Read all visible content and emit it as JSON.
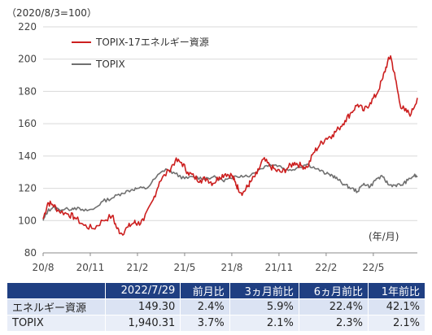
{
  "colors": {
    "energy": "#cc1f1f",
    "topix": "#707070",
    "header_bg": "#1f3f82",
    "row_bg": "#dbe3f3"
  },
  "chart_data": {
    "type": "line",
    "base_note": "（2020/8/3=100）",
    "x_unit": "(年/月)",
    "ylim": [
      80,
      220
    ],
    "yticks": [
      80,
      100,
      120,
      140,
      160,
      180,
      200,
      220
    ],
    "xticks": [
      "20/8",
      "20/11",
      "21/2",
      "21/5",
      "21/8",
      "21/11",
      "22/2",
      "22/5"
    ],
    "xrange_months": [
      0,
      11.9
    ],
    "legend_position": "top-left",
    "series": [
      {
        "name": "TOPIX-17エネルギー資源",
        "color": "#cc1f1f",
        "x": [
          0,
          0.15,
          0.3,
          0.5,
          0.8,
          1.0,
          1.3,
          1.6,
          1.9,
          2.2,
          2.35,
          2.5,
          2.7,
          2.9,
          3.0,
          3.2,
          3.5,
          3.7,
          4.0,
          4.2,
          4.4,
          4.6,
          4.8,
          5.0,
          5.2,
          5.4,
          5.6,
          5.8,
          6.0,
          6.1,
          6.2,
          6.35,
          6.5,
          6.6,
          6.8,
          7.0,
          7.2,
          7.4,
          7.6,
          7.8,
          8.0,
          8.2,
          8.4,
          8.6,
          8.8,
          9.0,
          9.2,
          9.4,
          9.6,
          9.8,
          10.0,
          10.2,
          10.4,
          10.6,
          10.8,
          10.95,
          11.05,
          11.2,
          11.35,
          11.5,
          11.7,
          11.9
        ],
        "values": [
          101,
          111,
          110,
          106,
          104,
          102,
          97,
          95,
          100,
          103,
          95,
          92,
          96,
          99,
          98,
          100,
          113,
          124,
          131,
          137,
          136,
          130,
          127,
          125,
          126,
          123,
          127,
          129,
          128,
          124,
          120,
          117,
          121,
          124,
          129,
          138,
          134,
          131,
          130,
          133,
          136,
          134,
          133,
          142,
          147,
          151,
          153,
          157,
          162,
          167,
          172,
          168,
          173,
          178,
          188,
          198,
          202,
          188,
          172,
          168,
          166,
          176
        ]
      },
      {
        "name": "TOPIX",
        "color": "#707070",
        "x": [
          0,
          0.15,
          0.3,
          0.5,
          0.8,
          1.0,
          1.3,
          1.6,
          1.9,
          2.2,
          2.5,
          2.8,
          3.0,
          3.3,
          3.6,
          3.9,
          4.2,
          4.5,
          4.8,
          5.1,
          5.4,
          5.7,
          6.0,
          6.3,
          6.6,
          6.9,
          7.2,
          7.5,
          7.8,
          8.1,
          8.4,
          8.7,
          9.0,
          9.2,
          9.4,
          9.6,
          9.8,
          10.0,
          10.2,
          10.4,
          10.6,
          10.8,
          11.0,
          11.2,
          11.4,
          11.6,
          11.8,
          11.9
        ],
        "values": [
          100,
          106,
          108,
          107,
          107,
          108,
          106,
          107,
          112,
          114,
          117,
          119,
          120,
          120,
          127,
          132,
          129,
          126,
          127,
          126,
          127,
          125,
          126,
          128,
          128,
          132,
          135,
          134,
          131,
          133,
          135,
          132,
          129,
          128,
          125,
          122,
          120,
          118,
          123,
          121,
          126,
          127,
          122,
          122,
          122,
          125,
          128,
          127
        ]
      }
    ]
  },
  "table": {
    "headers": [
      "2022/7/29",
      "前月比",
      "3ヵ月前比",
      "6ヵ月前比",
      "1年前比"
    ],
    "rows": [
      {
        "name": "エネルギー資源",
        "price": "149.30",
        "m1": "2.4%",
        "m3": "5.9%",
        "m6": "22.4%",
        "y1": "42.1%"
      },
      {
        "name": "TOPIX",
        "price": "1,940.31",
        "m1": "3.7%",
        "m3": "2.1%",
        "m6": "2.3%",
        "y1": "2.1%"
      }
    ]
  }
}
